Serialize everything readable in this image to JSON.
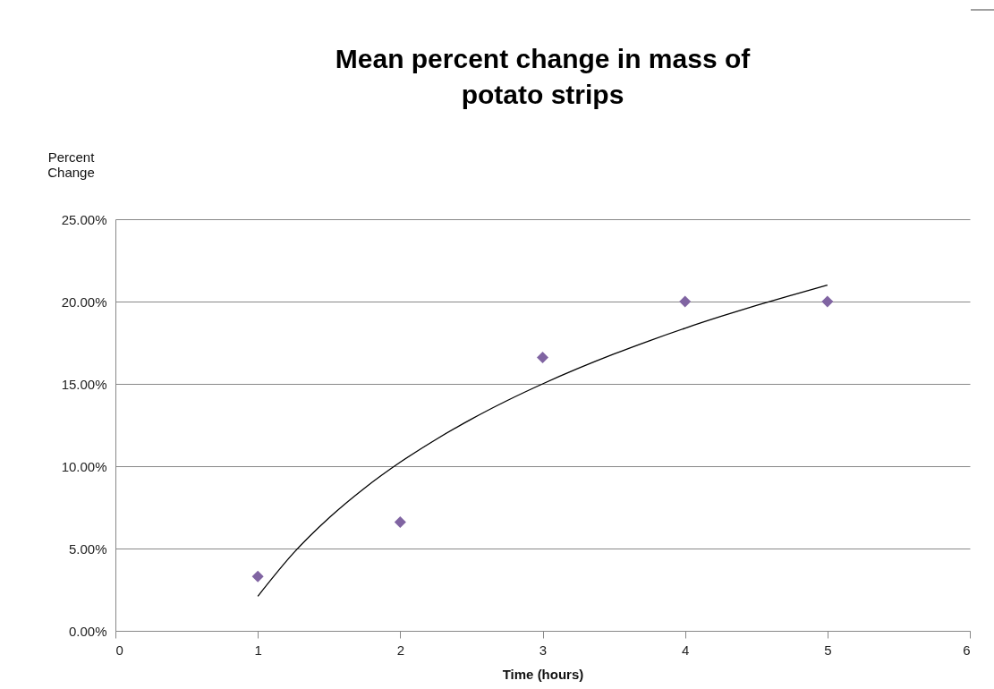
{
  "chart_data": {
    "type": "scatter",
    "title": "Mean percent change in mass of potato strips",
    "ylabel": "Percent Change",
    "xlabel": "Time (hours)",
    "x": [
      1,
      2,
      3,
      4,
      5
    ],
    "series": [
      {
        "color": "#8064a2",
        "marker": "diamond",
        "values": [
          3.3,
          6.6,
          16.6,
          20,
          20
        ]
      },
      {
        "type": "line",
        "color": "#000000",
        "x": [
          1,
          1.25,
          1.5,
          1.75,
          2,
          2.25,
          2.5,
          2.75,
          3,
          3.25,
          3.5,
          3.75,
          4,
          4.25,
          4.5,
          4.75,
          5
        ],
        "values": [
          2.1,
          4.72,
          6.86,
          8.67,
          10.24,
          11.62,
          12.86,
          13.98,
          15,
          15.94,
          16.81,
          17.62,
          18.38,
          19.09,
          19.76,
          20.39,
          21
        ]
      }
    ],
    "grid": "y",
    "xlim": [
      0,
      6
    ],
    "xticks": [
      0,
      1,
      2,
      3,
      4,
      5,
      6
    ],
    "ylim": [
      0,
      25
    ],
    "yticks": [
      {
        "value": 0,
        "label": "0.00%"
      },
      {
        "value": 5,
        "label": "5.00%"
      },
      {
        "value": 10,
        "label": "10.00%"
      },
      {
        "value": 15,
        "label": "15.00%"
      },
      {
        "value": 20,
        "label": "20.00%"
      },
      {
        "value": 25,
        "label": "25.00%"
      }
    ]
  }
}
